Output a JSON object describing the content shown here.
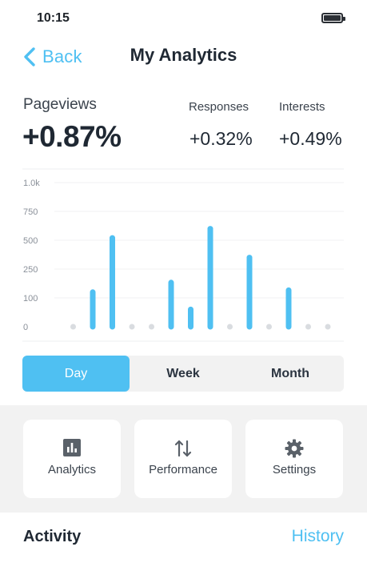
{
  "status_bar": {
    "time": "10:15"
  },
  "nav": {
    "back_label": "Back",
    "title": "My Analytics"
  },
  "metrics": {
    "primary": {
      "label": "Pageviews",
      "value": "+0.87%"
    },
    "secondary": [
      {
        "label": "Responses",
        "value": "+0.32%"
      },
      {
        "label": "Interests",
        "value": "+0.49%"
      }
    ]
  },
  "chart_data": {
    "type": "bar",
    "title": "",
    "xlabel": "",
    "ylabel": "",
    "ylim": [
      0,
      1000
    ],
    "y_ticks": [
      "0",
      "100",
      "250",
      "500",
      "750",
      "1.0k"
    ],
    "y_tick_values": [
      0,
      100,
      250,
      500,
      750,
      1000
    ],
    "grid": true,
    "values": [
      0,
      130,
      520,
      0,
      0,
      180,
      60,
      600,
      0,
      350,
      0,
      140,
      0,
      0
    ],
    "bar_color": "#4fc0f2",
    "empty_dot_color": "#d9dce0"
  },
  "period_selector": {
    "options": [
      "Day",
      "Week",
      "Month"
    ],
    "selected": "Day"
  },
  "tiles": [
    {
      "label": "Analytics",
      "icon": "bar-chart-icon"
    },
    {
      "label": "Performance",
      "icon": "swap-arrows-icon"
    },
    {
      "label": "Settings",
      "icon": "gear-icon"
    }
  ],
  "activity": {
    "title": "Activity",
    "link": "History"
  },
  "colors": {
    "accent": "#4fc0f2",
    "text_dark": "#1f2833",
    "panel_bg": "#f2f2f2"
  }
}
